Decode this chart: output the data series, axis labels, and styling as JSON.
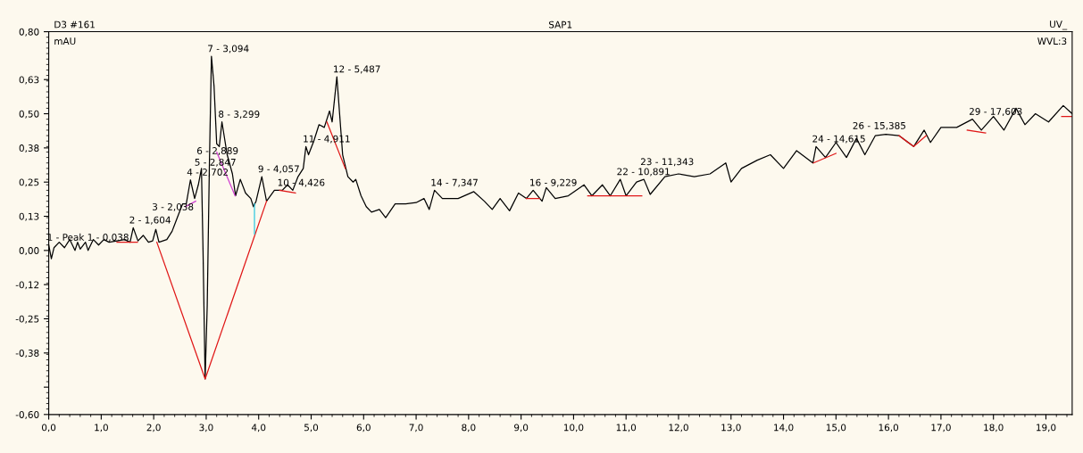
{
  "chart_data": {
    "type": "line",
    "title": "SAP1",
    "ylabel": "mAU",
    "annotations": [
      "D3 #161",
      "UV_",
      "WVL:3",
      {
        "text": "1 - Peak 1 - 0,038",
        "x": 0.038,
        "y": 0.02
      },
      {
        "text": "2 - 1,604",
        "x": 1.604,
        "y": 0.083
      },
      {
        "text": "3 - 2,038",
        "x": 2.038,
        "y": 0.077
      },
      {
        "text": "4 - 2,702",
        "x": 2.702,
        "y": 0.258
      },
      {
        "text": "5 - 2,847",
        "x": 2.847,
        "y": 0.24
      },
      {
        "text": "6 - 2,889",
        "x": 2.889,
        "y": 0.3
      },
      {
        "text": "7 - 3,094",
        "x": 3.094,
        "y": 0.71
      },
      {
        "text": "8 - 3,299",
        "x": 3.299,
        "y": 0.47
      },
      {
        "text": "9 - 4,057",
        "x": 4.057,
        "y": 0.27
      },
      {
        "text": "10 - 4,426",
        "x": 4.426,
        "y": 0.22
      },
      {
        "text": "11 - 4,911",
        "x": 4.911,
        "y": 0.38
      },
      {
        "text": "12 - 5,487",
        "x": 5.487,
        "y": 0.635
      },
      {
        "text": "14 - 7,347",
        "x": 7.347,
        "y": 0.22
      },
      {
        "text": "16 - 9,229",
        "x": 9.229,
        "y": 0.22
      },
      {
        "text": "22 - 10,891",
        "x": 10.891,
        "y": 0.26
      },
      {
        "text": "23 - 11,343",
        "x": 11.343,
        "y": 0.26
      },
      {
        "text": "24 - 14,615",
        "x": 14.615,
        "y": 0.38
      },
      {
        "text": "26 - 15,385",
        "x": 15.385,
        "y": 0.41
      },
      {
        "text": "29 - 17,603",
        "x": 17.603,
        "y": 0.48
      }
    ],
    "series": [
      {
        "color": "#000000",
        "x": [
          0.0,
          0.05,
          0.1,
          0.2,
          0.3,
          0.4,
          0.5,
          0.55,
          0.6,
          0.7,
          0.75,
          0.85,
          0.95,
          1.05,
          1.15,
          1.3,
          1.45,
          1.55,
          1.61,
          1.7,
          1.8,
          1.9,
          1.98,
          2.04,
          2.1,
          2.25,
          2.35,
          2.45,
          2.55,
          2.62,
          2.7,
          2.78,
          2.85,
          2.91,
          2.94,
          2.98,
          3.02,
          3.06,
          3.1,
          3.15,
          3.2,
          3.25,
          3.3,
          3.4,
          3.5,
          3.56,
          3.65,
          3.75,
          3.85,
          3.9,
          3.95,
          4.06,
          4.15,
          4.3,
          4.45,
          4.55,
          4.65,
          4.75,
          4.85,
          4.9,
          4.95,
          5.05,
          5.15,
          5.25,
          5.35,
          5.4,
          5.49,
          5.6,
          5.7,
          5.8,
          5.85,
          5.95,
          6.05,
          6.15,
          6.3,
          6.42,
          6.6,
          6.8,
          7.0,
          7.15,
          7.25,
          7.35,
          7.5,
          7.8,
          8.1,
          8.3,
          8.45,
          8.6,
          8.78,
          8.95,
          9.1,
          9.23,
          9.4,
          9.48,
          9.65,
          9.9,
          10.2,
          10.35,
          10.55,
          10.7,
          10.89,
          11.0,
          11.2,
          11.34,
          11.46,
          11.74,
          12.0,
          12.3,
          12.6,
          12.9,
          13.0,
          13.2,
          13.5,
          13.75,
          14.0,
          14.25,
          14.56,
          14.62,
          14.8,
          15.0,
          15.2,
          15.39,
          15.55,
          15.75,
          15.95,
          16.2,
          16.48,
          16.68,
          16.8,
          17.0,
          17.3,
          17.6,
          17.77,
          18.0,
          18.2,
          18.43,
          18.6,
          18.8,
          19.05,
          19.33,
          19.5
        ],
        "values": [
          0.02,
          -0.03,
          0.01,
          0.03,
          0.01,
          0.04,
          0.0,
          0.03,
          0.005,
          0.03,
          0.0,
          0.04,
          0.02,
          0.04,
          0.03,
          0.035,
          0.04,
          0.03,
          0.083,
          0.035,
          0.055,
          0.03,
          0.035,
          0.077,
          0.03,
          0.04,
          0.07,
          0.12,
          0.17,
          0.17,
          0.258,
          0.19,
          0.24,
          0.3,
          0.0,
          -0.47,
          -0.2,
          0.3,
          0.71,
          0.6,
          0.39,
          0.38,
          0.47,
          0.35,
          0.28,
          0.2,
          0.26,
          0.21,
          0.19,
          0.16,
          0.18,
          0.27,
          0.18,
          0.22,
          0.22,
          0.24,
          0.22,
          0.27,
          0.3,
          0.38,
          0.35,
          0.4,
          0.46,
          0.45,
          0.51,
          0.47,
          0.635,
          0.35,
          0.27,
          0.25,
          0.26,
          0.2,
          0.16,
          0.14,
          0.15,
          0.12,
          0.17,
          0.17,
          0.175,
          0.19,
          0.15,
          0.22,
          0.19,
          0.19,
          0.215,
          0.18,
          0.15,
          0.19,
          0.145,
          0.21,
          0.19,
          0.22,
          0.18,
          0.23,
          0.19,
          0.2,
          0.24,
          0.2,
          0.24,
          0.2,
          0.26,
          0.2,
          0.25,
          0.26,
          0.205,
          0.27,
          0.28,
          0.27,
          0.28,
          0.32,
          0.25,
          0.3,
          0.33,
          0.35,
          0.3,
          0.365,
          0.32,
          0.38,
          0.34,
          0.395,
          0.34,
          0.41,
          0.35,
          0.42,
          0.425,
          0.42,
          0.38,
          0.44,
          0.395,
          0.45,
          0.45,
          0.48,
          0.44,
          0.49,
          0.44,
          0.52,
          0.46,
          0.5,
          0.47,
          0.53,
          0.5
        ]
      },
      {
        "color": "#e01818",
        "x": [
          1.3,
          1.69,
          1.7,
          2.06,
          2.98,
          4.15,
          4.16,
          4.4,
          4.7,
          4.71,
          5.3,
          5.65,
          5.66,
          9.1,
          9.35,
          9.36,
          10.27,
          11.3,
          11.31,
          14.57,
          15.0,
          15.01,
          16.2,
          16.48,
          16.72,
          16.73,
          17.5,
          17.85,
          17.86,
          19.3,
          19.5
        ],
        "values": [
          0.03,
          0.03,
          null,
          0.03,
          -0.47,
          0.18,
          null,
          0.22,
          0.21,
          null,
          0.47,
          0.3,
          null,
          0.19,
          0.19,
          null,
          0.2,
          0.2,
          null,
          0.32,
          0.355,
          null,
          0.42,
          0.38,
          0.42,
          null,
          0.44,
          0.43,
          null,
          0.49,
          0.49
        ]
      },
      {
        "color": "#d040d0",
        "x": [
          2.6,
          2.8,
          2.81,
          3.2,
          3.55
        ],
        "values": [
          0.16,
          0.18,
          null,
          0.36,
          0.2
        ]
      },
      {
        "color": "#30c8e0",
        "x": [
          3.92,
          3.92
        ],
        "values": [
          0.17,
          0.06
        ]
      }
    ],
    "xlim": [
      0,
      19.5
    ],
    "xticks": [
      {
        "value": 0,
        "label": "0,0"
      },
      {
        "value": 1,
        "label": "1,0"
      },
      {
        "value": 2,
        "label": "2,0"
      },
      {
        "value": 3,
        "label": "3,0"
      },
      {
        "value": 4,
        "label": "4,0"
      },
      {
        "value": 5,
        "label": "5,0"
      },
      {
        "value": 6,
        "label": "6,0"
      },
      {
        "value": 7,
        "label": "7,0"
      },
      {
        "value": 8,
        "label": "8,0"
      },
      {
        "value": 9,
        "label": "9,0"
      },
      {
        "value": 10,
        "label": "10,0"
      },
      {
        "value": 11,
        "label": "11,0"
      },
      {
        "value": 12,
        "label": "12,0"
      },
      {
        "value": 13,
        "label": "13,0"
      },
      {
        "value": 14,
        "label": "14,0"
      },
      {
        "value": 15,
        "label": "15,0"
      },
      {
        "value": 16,
        "label": "16,0"
      },
      {
        "value": 17,
        "label": "17,0"
      },
      {
        "value": 18,
        "label": "18,0"
      },
      {
        "value": 19,
        "label": "19,0"
      }
    ],
    "ylim": [
      -0.6,
      0.8
    ],
    "yticks": [
      {
        "value": 0.8,
        "label": "0,80"
      },
      {
        "value": 0.625,
        "label": "0,63"
      },
      {
        "value": 0.5,
        "label": "0,50"
      },
      {
        "value": 0.375,
        "label": "0,38"
      },
      {
        "value": 0.25,
        "label": "0,25"
      },
      {
        "value": 0.125,
        "label": "0,13"
      },
      {
        "value": 0,
        "label": "0,00"
      },
      {
        "value": -0.125,
        "label": "-0,12"
      },
      {
        "value": -0.25,
        "label": "-0,25"
      },
      {
        "value": -0.375,
        "label": "-0,38"
      },
      {
        "value": -0.5,
        "label": null
      },
      {
        "value": -0.6,
        "label": "-0,60"
      }
    ],
    "grid": false,
    "legend": false,
    "marker": "none",
    "line_style": "solid"
  }
}
